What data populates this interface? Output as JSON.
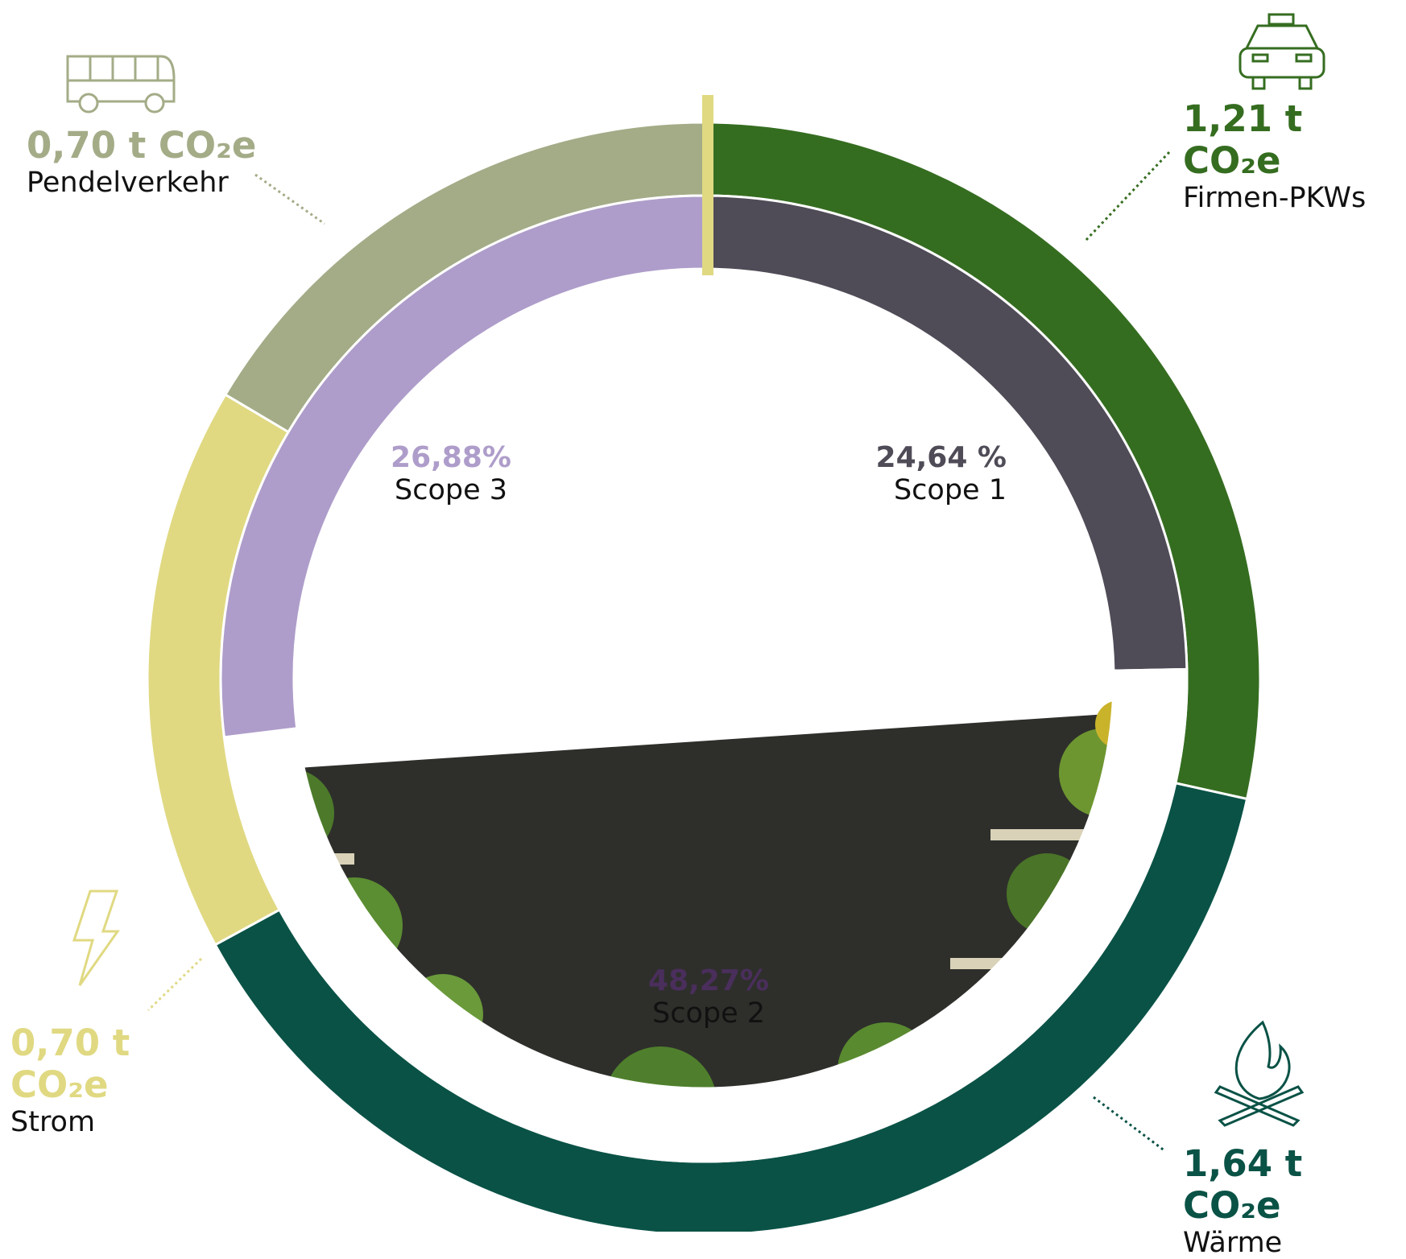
{
  "chart_data": [
    {
      "type": "pie",
      "categories": [
        "Firmen-PKWs",
        "Wärme",
        "Strom",
        "Pendelverkehr"
      ],
      "values": [
        1.21,
        1.64,
        0.7,
        0.7
      ],
      "value_labels": [
        "1,21 t CO₂e",
        "1,64 t CO₂e",
        "0,70 t CO₂e",
        "0,70 t CO₂e"
      ],
      "colors": [
        "#356d20",
        "#0a5246",
        "#e0d982",
        "#a3ac87"
      ]
    },
    {
      "type": "pie",
      "categories": [
        "Scope 1",
        "Scope 2",
        "Scope 3"
      ],
      "values": [
        24.64,
        48.27,
        26.88
      ],
      "value_labels": [
        "24,64 %",
        "48,27%",
        "26,88%"
      ],
      "colors": [
        "#4f4b57",
        "#3e4a30",
        "#ae9dca"
      ],
      "label_colors": [
        "#4f4b57",
        "#4a2e5c",
        "#ae9dca"
      ]
    }
  ]
}
